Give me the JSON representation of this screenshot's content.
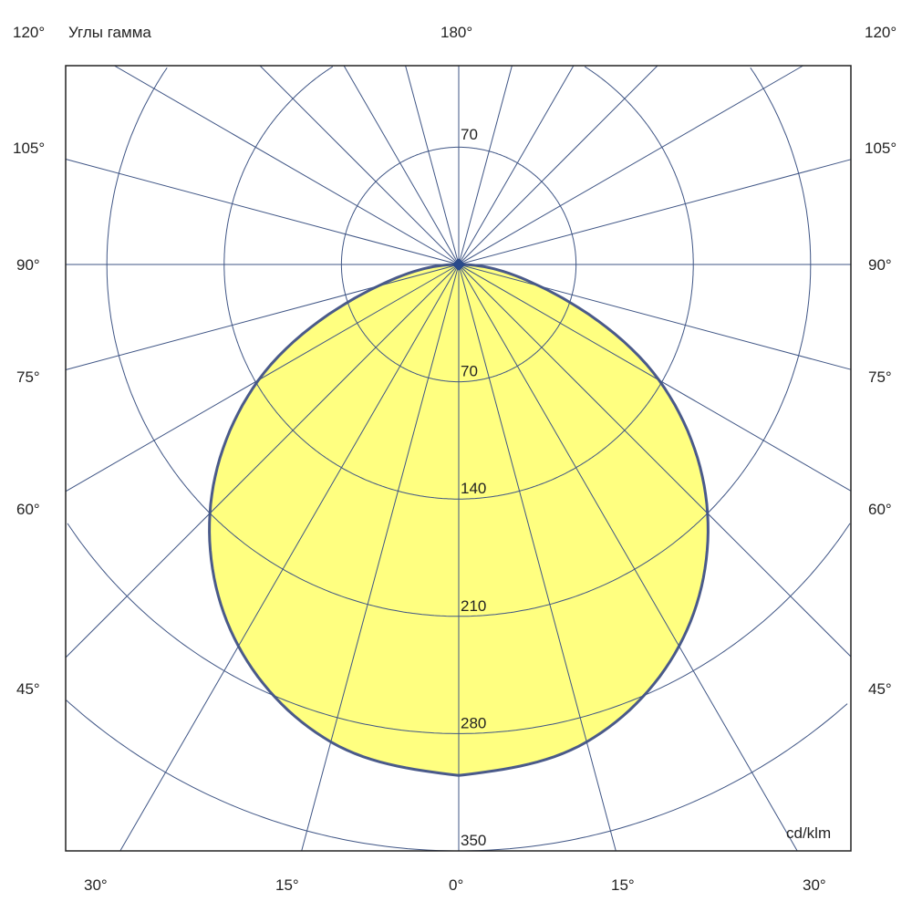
{
  "chart_data": {
    "type": "polar-line",
    "title": "Углы гамма",
    "unit": "cd/klm",
    "radial_ticks": [
      70,
      140,
      210,
      280,
      350
    ],
    "radial_range": [
      0,
      350
    ],
    "angle_step_deg": 15,
    "angle_labels": {
      "top": "180°",
      "left": [
        "120°",
        "105°",
        "90°",
        "75°",
        "60°",
        "45°"
      ],
      "right": [
        "120°",
        "105°",
        "90°",
        "75°",
        "60°",
        "45°"
      ],
      "bottom": [
        "30°",
        "15°",
        "0°",
        "15°",
        "30°"
      ]
    },
    "series": [
      {
        "gamma_deg": [
          0,
          15,
          30,
          45,
          60,
          75,
          90
        ],
        "intensity": [
          305,
          295,
          263,
          210,
          138,
          50,
          0
        ]
      }
    ],
    "fill_color": "#ffff80",
    "outline_color": "#4a5a8a",
    "grid_color": "#3f5585",
    "grid": true
  }
}
